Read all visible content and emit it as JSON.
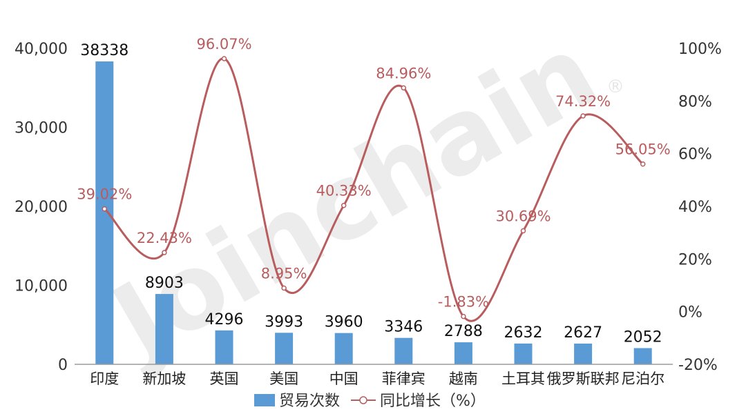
{
  "watermark": {
    "text": "Joinchain",
    "mark": "®"
  },
  "colors": {
    "bar": "#5b9bd5",
    "line": "#b85c5e",
    "axis": "#333333",
    "text": "#222222"
  },
  "chart_data": {
    "type": "bar",
    "categories": [
      "印度",
      "新加坡",
      "英国",
      "美国",
      "中国",
      "菲律宾",
      "越南",
      "土耳其",
      "俄罗斯联邦",
      "尼泊尔"
    ],
    "series": [
      {
        "name": "贸易次数",
        "type": "bar",
        "axis": "left",
        "values": [
          38338,
          8903,
          4296,
          3993,
          3960,
          3346,
          2788,
          2632,
          2627,
          2052
        ],
        "labels": [
          "38338",
          "8903",
          "4296",
          "3993",
          "3960",
          "3346",
          "2788",
          "2632",
          "2627",
          "2052"
        ]
      },
      {
        "name": "同比增长（%）",
        "type": "line",
        "smooth": true,
        "axis": "right",
        "values": [
          39.02,
          22.43,
          96.07,
          8.95,
          40.33,
          84.96,
          -1.83,
          30.69,
          74.32,
          56.05
        ],
        "labels": [
          "39.02%",
          "22.43%",
          "96.07%",
          "8.95%",
          "40.33%",
          "84.96%",
          "-1.83%",
          "30.69%",
          "74.32%",
          "56.05%"
        ]
      }
    ],
    "left_axis": {
      "min": 0,
      "max": 40000,
      "ticks": [
        0,
        10000,
        20000,
        30000,
        40000
      ],
      "tick_labels": [
        "0",
        "10,000",
        "20,000",
        "30,000",
        "40,000"
      ]
    },
    "right_axis": {
      "min": -20,
      "max": 100,
      "ticks": [
        -20,
        0,
        20,
        40,
        60,
        80,
        100
      ],
      "tick_labels": [
        "-20%",
        "0%",
        "20%",
        "40%",
        "60%",
        "80%",
        "100%"
      ]
    },
    "legend": {
      "position": "bottom",
      "items": [
        "贸易次数",
        "同比增长（%）"
      ]
    },
    "grid": false
  }
}
